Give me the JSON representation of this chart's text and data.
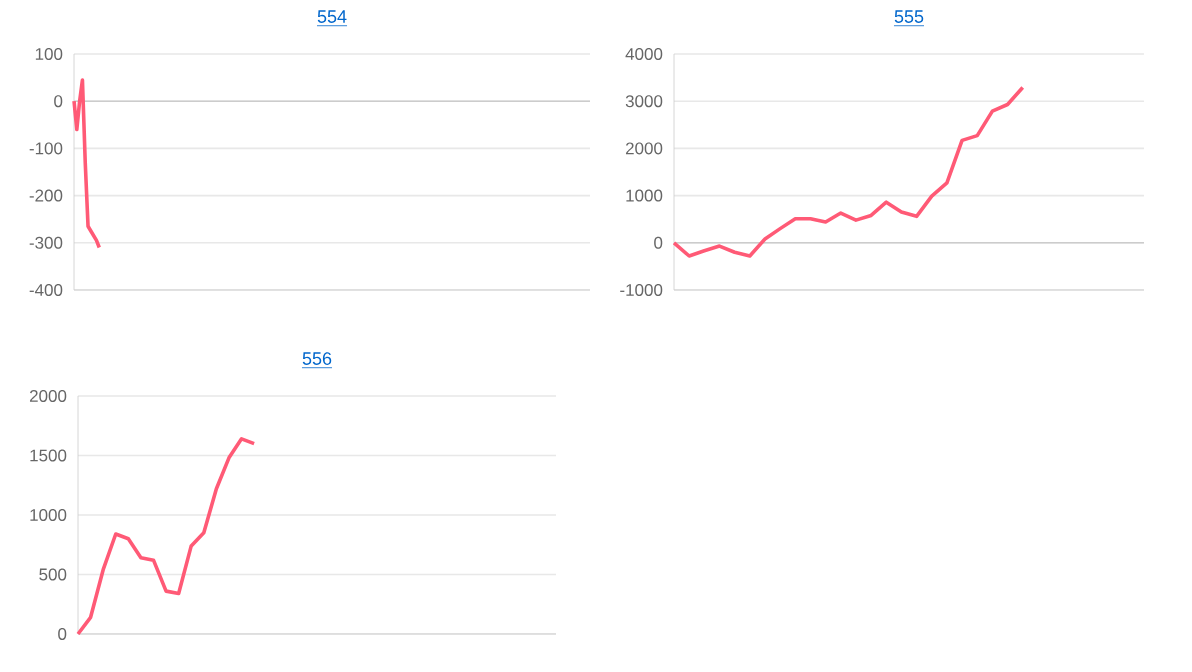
{
  "chart_data": [
    {
      "type": "line",
      "title": "554",
      "color": "#ff5a76",
      "marker": "none",
      "grid": "y",
      "tick_labels": "y",
      "ylim": [
        -400,
        100
      ],
      "yticks": [
        -400,
        -300,
        -200,
        -100,
        0,
        100
      ],
      "values": [
        0,
        -60,
        0,
        45,
        -130,
        -265,
        -275,
        -285,
        -295,
        -310,
        null,
        null,
        null,
        null,
        null,
        null,
        null,
        null,
        null,
        null,
        null,
        null,
        null,
        null,
        null,
        null,
        null,
        null,
        null,
        null,
        null,
        null,
        null,
        null,
        null,
        null,
        null,
        null,
        null,
        null,
        null,
        null,
        null,
        null,
        null,
        null,
        null,
        null,
        null,
        null,
        null,
        null,
        null,
        null,
        null,
        null,
        null,
        null,
        null,
        null,
        null,
        null,
        null,
        null,
        null,
        null,
        null,
        null,
        null,
        null,
        null,
        null,
        null,
        null,
        null,
        null,
        null,
        null,
        null,
        null,
        null,
        null,
        null,
        null,
        null,
        null,
        null,
        null,
        null,
        null,
        null,
        null,
        null,
        null,
        null,
        null,
        null,
        null,
        null,
        null,
        null,
        null,
        null,
        null,
        null,
        null,
        null,
        null,
        null,
        null,
        null,
        null,
        null,
        null,
        null,
        null,
        null,
        null,
        null,
        null,
        null,
        null,
        null,
        null,
        null,
        null,
        null,
        null,
        null,
        null,
        null,
        null,
        null,
        null,
        null,
        null,
        null,
        null,
        null,
        null,
        null,
        null,
        null,
        null,
        null,
        null,
        null,
        null,
        null,
        null,
        null,
        null,
        null,
        null,
        null,
        null,
        null,
        null,
        null,
        null,
        null,
        null,
        null,
        null,
        null,
        null,
        null,
        null,
        null,
        null,
        null,
        null,
        null,
        null,
        null,
        null,
        null,
        null,
        null,
        null,
        null,
        null,
        null,
        null,
        null
      ],
      "categories": [
        null,
        null,
        null,
        null,
        null,
        null,
        null,
        null,
        null,
        null,
        null,
        null,
        null,
        null,
        null,
        null,
        null,
        null,
        null,
        null,
        null,
        null,
        null,
        null,
        null,
        null,
        null,
        null,
        null,
        null,
        null,
        null,
        null,
        null,
        null,
        null,
        null,
        null,
        null,
        null,
        null,
        null,
        null,
        null,
        null,
        null,
        null,
        null,
        null,
        null,
        null,
        null,
        null,
        null,
        null,
        null,
        null,
        null,
        null,
        null,
        null,
        null,
        null,
        null,
        null,
        null,
        null,
        null,
        null,
        null,
        null,
        null,
        null,
        null,
        null,
        null,
        null,
        null,
        null,
        null,
        null,
        null,
        null,
        null,
        null,
        null,
        null,
        null,
        null,
        null,
        null,
        null,
        null,
        null,
        null,
        null,
        null,
        null,
        null,
        null,
        null,
        null,
        null,
        null,
        null,
        null,
        null,
        null,
        null,
        null,
        null,
        null,
        null,
        null,
        null,
        null,
        null,
        null,
        null,
        null,
        null,
        null,
        null,
        null,
        null,
        null,
        null,
        null,
        null,
        null,
        null,
        null,
        null,
        null,
        null,
        null,
        null,
        null,
        null,
        null,
        null,
        null,
        null,
        null,
        null,
        null,
        null,
        null,
        null,
        null,
        null,
        null,
        null,
        null,
        null,
        null,
        null,
        null,
        null,
        null,
        null,
        null,
        null,
        null,
        null,
        null,
        null,
        null,
        null,
        null,
        null,
        null,
        null,
        null,
        null,
        null,
        null,
        null,
        null,
        null,
        null,
        null,
        null,
        null,
        null
      ]
    },
    {
      "type": "line",
      "title": "555",
      "color": "#ff5a76",
      "marker": "none",
      "grid": "y",
      "tick_labels": "y",
      "ylim": [
        -1000,
        4000
      ],
      "yticks": [
        -1000,
        0,
        1000,
        2000,
        3000,
        4000
      ],
      "values": [
        0,
        -280,
        -170,
        -70,
        -200,
        -280,
        80,
        300,
        510,
        510,
        440,
        630,
        480,
        580,
        860,
        650,
        560,
        990,
        1270,
        2170,
        2270,
        2790,
        2930,
        3290,
        null,
        null,
        null,
        null,
        null,
        null,
        null,
        null
      ],
      "categories": [
        null,
        null,
        null,
        null,
        null,
        null,
        null,
        null,
        null,
        null,
        null,
        null,
        null,
        null,
        null,
        null,
        null,
        null,
        null,
        null,
        null,
        null,
        null,
        null,
        null,
        null,
        null,
        null,
        null,
        null,
        null,
        null
      ]
    },
    {
      "type": "line",
      "title": "556",
      "color": "#ff5a76",
      "marker": "none",
      "grid": "y",
      "tick_labels": "y",
      "ylim": [
        0,
        2000
      ],
      "yticks": [
        0,
        500,
        1000,
        1500,
        2000
      ],
      "values": [
        0,
        140,
        540,
        840,
        800,
        640,
        620,
        360,
        340,
        740,
        850,
        1220,
        1480,
        1640,
        1600,
        null,
        null,
        null,
        null,
        null,
        null,
        null,
        null,
        null,
        null,
        null,
        null,
        null,
        null,
        null,
        null,
        null,
        null,
        null,
        null,
        null,
        null,
        null,
        null
      ],
      "categories": [
        null,
        null,
        null,
        null,
        null,
        null,
        null,
        null,
        null,
        null,
        null,
        null,
        null,
        null,
        null,
        null,
        null,
        null,
        null,
        null,
        null,
        null,
        null,
        null,
        null,
        null,
        null,
        null,
        null,
        null,
        null,
        null,
        null,
        null,
        null,
        null,
        null,
        null,
        null
      ]
    }
  ]
}
